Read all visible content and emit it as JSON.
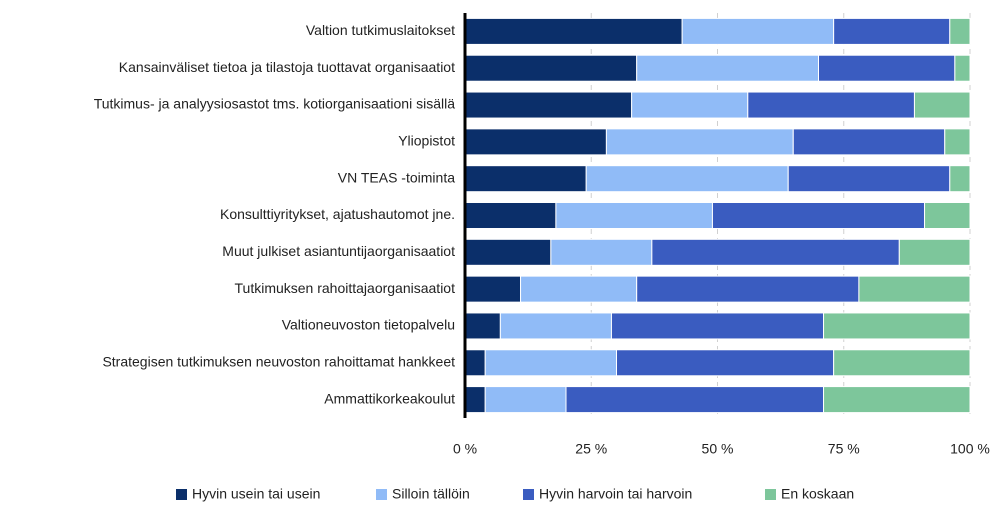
{
  "chart_data": {
    "type": "stacked-barh",
    "categories": [
      "Valtion tutkimuslaitokset",
      "Kansainväliset tietoa ja tilastoja tuottavat organisaatiot",
      "Tutkimus- ja analyysiosastot tms. kotiorganisaationi sisällä",
      "Yliopistot",
      "VN TEAS -toiminta",
      "Konsulttiyritykset, ajatushautomot jne.",
      "Muut julkiset asiantuntijaorganisaatiot",
      "Tutkimuksen rahoittajaorganisaatiot",
      "Valtioneuvoston tietopalvelu",
      "Strategisen tutkimuksen neuvoston rahoittamat hankkeet",
      "Ammattikorkeakoulut"
    ],
    "series": [
      {
        "name": "Hyvin usein tai usein",
        "color": "#0b2f6a",
        "values": [
          43,
          34,
          33,
          28,
          24,
          18,
          17,
          11,
          7,
          4,
          4
        ]
      },
      {
        "name": "Silloin tällöin",
        "color": "#90bbf7",
        "values": [
          30,
          36,
          23,
          37,
          40,
          31,
          20,
          23,
          22,
          26,
          16
        ]
      },
      {
        "name": "Hyvin harvoin tai harvoin",
        "color": "#3a5cc0",
        "values": [
          23,
          27,
          33,
          30,
          32,
          42,
          49,
          44,
          42,
          43,
          51
        ]
      },
      {
        "name": "En koskaan",
        "color": "#7dc69b",
        "values": [
          4,
          3,
          11,
          5,
          4,
          9,
          14,
          22,
          29,
          27,
          29
        ]
      }
    ],
    "xlim": [
      0,
      100
    ],
    "xticks": [
      {
        "value": 0,
        "label": "0 %"
      },
      {
        "value": 25,
        "label": "25 %"
      },
      {
        "value": 50,
        "label": "50 %"
      },
      {
        "value": 75,
        "label": "75 %"
      },
      {
        "value": 100,
        "label": "100 %"
      }
    ],
    "grid": true
  }
}
